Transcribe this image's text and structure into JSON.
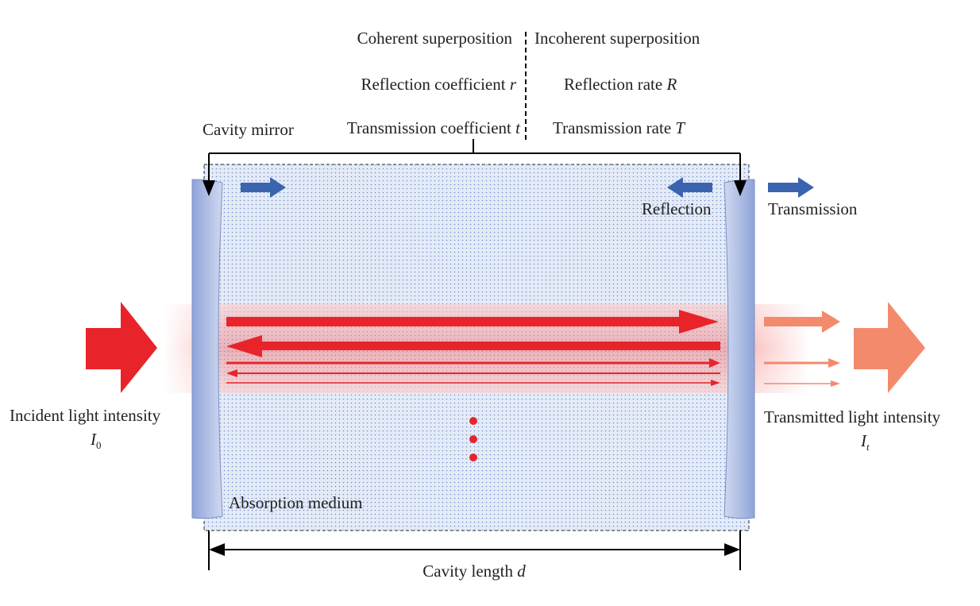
{
  "header": {
    "coherent": "Coherent superposition",
    "incoherent": "Incoherent superposition"
  },
  "coherent_terms": [
    {
      "text": "Reflection coefficient",
      "symbol": "r"
    },
    {
      "text": "Transmission coefficient",
      "symbol": "t"
    }
  ],
  "incoherent_terms": [
    {
      "text": "Reflection rate",
      "symbol": "R"
    },
    {
      "text": "Transmission rate",
      "symbol": "T"
    }
  ],
  "labels": {
    "cavity_mirror": "Cavity mirror",
    "reflection": "Reflection",
    "transmission": "Transmission",
    "absorption_medium": "Absorption medium"
  },
  "incident": {
    "text": "Incident light intensity",
    "symbol": "I",
    "subscript": "0"
  },
  "transmitted": {
    "text": "Transmitted light intensity",
    "symbol": "I",
    "subscript": "t"
  },
  "cavity_length": {
    "text": "Cavity length",
    "symbol": "d"
  }
}
